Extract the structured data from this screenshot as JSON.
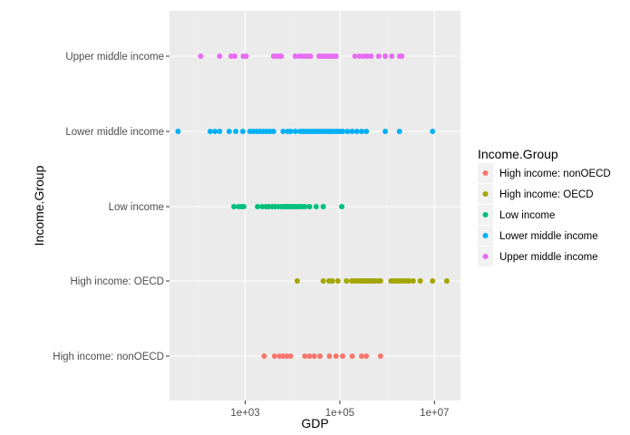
{
  "chart_data": {
    "type": "scatter",
    "title": "",
    "xlabel": "GDP",
    "ylabel": "Income.Group",
    "x_scale": "log10",
    "xlim_log10": [
      1.4,
      7.55
    ],
    "x_ticks": [
      {
        "log10": 3,
        "label": "1e+03"
      },
      {
        "log10": 5,
        "label": "1e+05"
      },
      {
        "log10": 7,
        "label": "1e+07"
      }
    ],
    "categories": [
      "High income: nonOECD",
      "High income: OECD",
      "Low income",
      "Lower middle income",
      "Upper middle income"
    ],
    "legend": {
      "title": "Income.Group",
      "position": "right",
      "entries": [
        "High income: nonOECD",
        "High income: OECD",
        "Low income",
        "Lower middle income",
        "Upper middle income"
      ]
    },
    "colors": {
      "High income: nonOECD": "#F8766D",
      "High income: OECD": "#A3A500",
      "Low income": "#00BF7D",
      "Lower middle income": "#00B0F6",
      "Upper middle income": "#E76BF3"
    },
    "series": [
      {
        "name": "High income: nonOECD",
        "x_log10": [
          3.4,
          3.62,
          3.73,
          3.8,
          3.88,
          3.96,
          4.26,
          4.36,
          4.46,
          4.58,
          4.78,
          4.92,
          5.06,
          5.26,
          5.46,
          5.56,
          5.86
        ]
      },
      {
        "name": "High income: OECD",
        "x_log10": [
          4.1,
          4.65,
          4.77,
          4.84,
          4.96,
          5.14,
          5.25,
          5.3,
          5.36,
          5.42,
          5.47,
          5.52,
          5.57,
          5.62,
          5.67,
          5.72,
          5.76,
          5.82,
          5.86,
          6.08,
          6.14,
          6.19,
          6.24,
          6.29,
          6.34,
          6.4,
          6.46,
          6.55,
          6.7,
          6.96,
          7.26
        ]
      },
      {
        "name": "Low income",
        "x_log10": [
          2.76,
          2.86,
          2.92,
          2.97,
          3.26,
          3.36,
          3.44,
          3.5,
          3.57,
          3.63,
          3.7,
          3.77,
          3.82,
          3.86,
          3.9,
          3.95,
          4.0,
          4.05,
          4.1,
          4.15,
          4.2,
          4.26,
          4.36,
          4.5,
          4.65,
          5.04
        ]
      },
      {
        "name": "Lower middle income",
        "x_log10": [
          1.58,
          2.26,
          2.36,
          2.46,
          2.66,
          2.8,
          2.95,
          3.1,
          3.17,
          3.24,
          3.31,
          3.38,
          3.45,
          3.52,
          3.6,
          3.8,
          3.9,
          3.96,
          4.06,
          4.16,
          4.22,
          4.28,
          4.34,
          4.4,
          4.46,
          4.52,
          4.58,
          4.64,
          4.7,
          4.76,
          4.82,
          4.88,
          4.94,
          5.0,
          5.06,
          5.16,
          5.26,
          5.36,
          5.46,
          5.56,
          5.96,
          6.26,
          6.96
        ]
      },
      {
        "name": "Upper middle income",
        "x_log10": [
          2.06,
          2.46,
          2.7,
          2.78,
          2.96,
          3.02,
          3.6,
          3.66,
          3.7,
          3.76,
          4.06,
          4.14,
          4.2,
          4.26,
          4.32,
          4.38,
          4.56,
          4.62,
          4.68,
          4.74,
          4.8,
          4.86,
          4.92,
          5.32,
          5.42,
          5.5,
          5.58,
          5.66,
          5.82,
          5.96,
          6.1,
          6.26,
          6.31
        ]
      }
    ]
  }
}
